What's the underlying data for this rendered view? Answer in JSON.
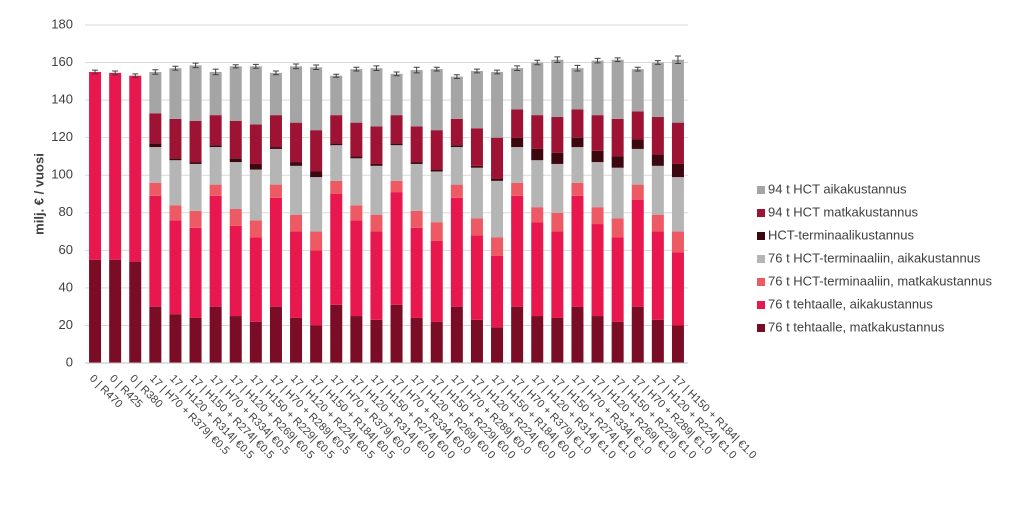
{
  "chart_data": {
    "type": "stacked_bar",
    "y_label": "milj. € / vuosi",
    "categories": [
      "0 | R470",
      "0 | R425",
      "0 | R380",
      "17 | H70 + R379| €0.5",
      "17 | H120 + R314| €0.5",
      "17 | H150 + R274| €0.5",
      "17 | H70 + R334| €0.5",
      "17 | H120 + R269| €0.5",
      "17 | H150 + R229| €0.5",
      "17 | H70 + R289| €0.5",
      "17 | H120 + R224| €0.5",
      "17 | H150 + R184| €0.5",
      "17 | H70 + R379| €0.0",
      "17 | H120 + R314| €0.0",
      "17 | H150 + R274| €0.0",
      "17 | H70 + R334| €0.0",
      "17 | H120 + R269| €0.0",
      "17 | H150 + R229| €0.0",
      "17 | H70 + R289| €0.0",
      "17 | H120 + R224| €0.0",
      "17 | H150 + R184| €0.0",
      "17 | H70 + R379| €1.0",
      "17 | H120 + R314| €1.0",
      "17 | H150 + R274| €1.0",
      "17 | H70 + R334| €1.0",
      "17 | H120 + R269| €1.0",
      "17 | H150 + R229| €1.0",
      "17 | H70 + R289| €1.0",
      "17 | H120 + R224| €1.0",
      "17 | H150 + R184| €1.0"
    ],
    "series": [
      {
        "name": "76 t tehtaalle, matkakustannus",
        "color": "#7b0c25",
        "values": [
          55,
          55,
          54,
          30,
          26,
          24,
          30,
          25,
          22,
          30,
          24,
          20,
          31,
          25,
          23,
          31,
          24,
          22,
          30,
          23,
          19,
          30,
          25,
          24,
          30,
          25,
          22,
          30,
          23,
          20
        ]
      },
      {
        "name": "76 t tehtaalle, aikakustannus",
        "color": "#e8174d",
        "values": [
          100,
          99.5,
          99,
          59,
          50,
          48,
          59,
          48,
          45,
          58,
          46,
          40,
          59,
          51,
          47,
          60,
          48,
          43,
          58,
          45,
          38,
          59,
          50,
          46,
          59,
          49,
          45,
          57,
          47,
          39
        ]
      },
      {
        "name": "76 t HCT-terminaaliin, matkakustannus",
        "color": "#ee5a64",
        "values": [
          0,
          0,
          0,
          7,
          8,
          9,
          6,
          9,
          9,
          7,
          9,
          10,
          7,
          8,
          9,
          6,
          9,
          10,
          7,
          9,
          10,
          7,
          8,
          10,
          7,
          9,
          10,
          8,
          9,
          11
        ]
      },
      {
        "name": "76 t HCT-terminaaliin, aikakustannus",
        "color": "#b5b5b5",
        "values": [
          0,
          0,
          0,
          19,
          24,
          25,
          20,
          25,
          27,
          19,
          26,
          29,
          19,
          25,
          26,
          19,
          25,
          27,
          20,
          27,
          30,
          19,
          25,
          26,
          19,
          24,
          27,
          19,
          26,
          29
        ]
      },
      {
        "name": "HCT-terminaalikustannus",
        "color": "#3d0710",
        "values": [
          0,
          0,
          0,
          2,
          1,
          1,
          1,
          2,
          3,
          1,
          2,
          3,
          1,
          1,
          1,
          1,
          1,
          1,
          1,
          1,
          1,
          5,
          6,
          6,
          5,
          6,
          6,
          5,
          6,
          7
        ]
      },
      {
        "name": "94 t HCT matkakustannus",
        "color": "#9e1234",
        "values": [
          0,
          0,
          0,
          16,
          21,
          22,
          16,
          20,
          21,
          17,
          21,
          22,
          15,
          18,
          20,
          15,
          19,
          21,
          14,
          20,
          22,
          15,
          18,
          19,
          15,
          19,
          20,
          15,
          20,
          22
        ]
      },
      {
        "name": "94 t HCT aikakustannus",
        "color": "#a5a5a5",
        "values": [
          0,
          0,
          0,
          22,
          27,
          29.5,
          23,
          29,
          31,
          22.5,
          30,
          33.5,
          21,
          28.5,
          31,
          22,
          30,
          32.5,
          22.5,
          30.5,
          35,
          22,
          28,
          30.5,
          22,
          29,
          31.5,
          22.5,
          29,
          33.5
        ]
      }
    ],
    "errors": [
      1,
      1,
      1,
      1.2,
      1,
      1.2,
      1.5,
      0.8,
      1,
      1,
      1.2,
      1.2,
      0.8,
      1,
      1.2,
      1,
      1.5,
      1,
      1,
      1,
      1,
      1.2,
      1.2,
      1.5,
      1.5,
      1.2,
      1,
      1,
      1,
      2
    ],
    "ylim": [
      0,
      180
    ],
    "yticks": [
      0,
      20,
      40,
      60,
      80,
      100,
      120,
      140,
      160,
      180
    ],
    "grid": true
  }
}
